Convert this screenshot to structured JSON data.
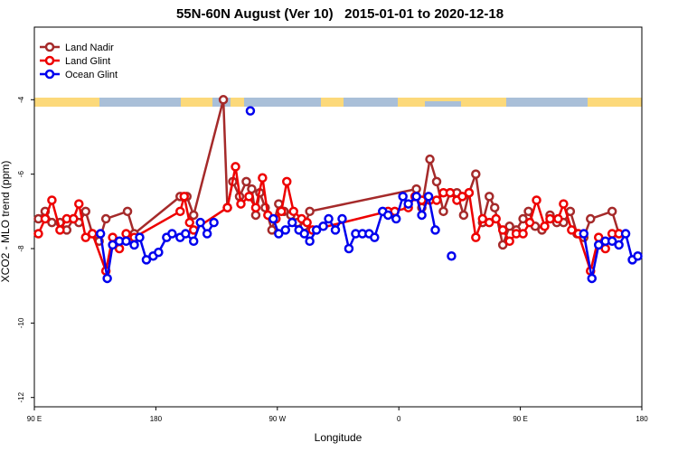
{
  "chart_data": {
    "type": "line",
    "title": "55N-60N August (Ver 10)   2015-01-01 to 2020-12-18",
    "x_label": "Longitude",
    "y_label": "XCO2 - MLO trend (ppm)",
    "xlim": [
      90,
      540
    ],
    "xticks": [
      {
        "value": 90,
        "label": "90 E"
      },
      180,
      {
        "value": 270,
        "label": "90 W"
      },
      {
        "value": 360,
        "label": "0"
      },
      {
        "value": 450,
        "label": "90 E"
      },
      {
        "value": 540,
        "label": "180"
      }
    ],
    "ylim": [
      -12.25,
      -2.05
    ],
    "yticks": [
      -4,
      -6,
      -8,
      -10,
      -12
    ],
    "grid": false,
    "legend": "upper left",
    "series": [
      {
        "name": "Land Nadir",
        "color": "#a52a2a",
        "x": [
          93,
          98,
          103,
          109,
          114,
          119,
          123,
          128,
          133,
          138,
          143,
          159,
          164,
          198,
          203,
          208,
          230,
          233,
          237,
          242,
          247,
          251,
          254,
          257,
          261,
          266,
          271,
          275,
          280,
          285,
          290,
          294,
          373,
          377,
          383,
          388,
          393,
          398,
          403,
          408,
          412,
          417,
          422,
          427,
          431,
          437,
          442,
          447,
          452,
          456,
          461,
          466,
          472,
          477,
          482,
          487,
          492,
          497,
          502,
          518,
          523
        ],
        "values": [
          -7.2,
          -7.0,
          -7.3,
          -7.3,
          -7.5,
          -7.2,
          -7.3,
          -7.0,
          -7.6,
          -7.8,
          -7.2,
          -7.0,
          -7.6,
          -6.6,
          -6.6,
          -7.1,
          -4.0,
          -6.9,
          -6.2,
          -6.6,
          -6.2,
          -6.4,
          -7.1,
          -6.5,
          -6.9,
          -7.5,
          -6.8,
          -7.0,
          -7.1,
          -7.3,
          -7.4,
          -7.0,
          -6.4,
          -6.9,
          -5.6,
          -6.2,
          -7.0,
          -6.5,
          -6.5,
          -7.1,
          -6.5,
          -6.0,
          -7.3,
          -6.6,
          -6.9,
          -7.9,
          -7.4,
          -7.5,
          -7.2,
          -7.0,
          -7.4,
          -7.5,
          -7.1,
          -7.3,
          -7.3,
          -7.0,
          -7.6,
          -7.7,
          -7.2,
          -7.0,
          -7.6
        ]
      },
      {
        "name": "Land Glint",
        "color": "#ee0000",
        "x": [
          93,
          98,
          103,
          109,
          114,
          119,
          123,
          128,
          133,
          143,
          148,
          153,
          158,
          164,
          198,
          201,
          205,
          208,
          233,
          239,
          243,
          249,
          254,
          259,
          263,
          269,
          273,
          277,
          282,
          288,
          292,
          296,
          352,
          357,
          367,
          372,
          377,
          383,
          388,
          393,
          398,
          403,
          407,
          412,
          417,
          422,
          427,
          432,
          437,
          442,
          447,
          452,
          457,
          462,
          468,
          472,
          478,
          482,
          488,
          493,
          502,
          508,
          513,
          518,
          523
        ],
        "values": [
          -7.6,
          -7.2,
          -6.7,
          -7.5,
          -7.2,
          -7.2,
          -6.8,
          -7.7,
          -7.6,
          -8.6,
          -7.7,
          -8.0,
          -7.6,
          -7.7,
          -7.0,
          -6.6,
          -7.3,
          -7.5,
          -6.9,
          -5.8,
          -6.8,
          -6.6,
          -6.9,
          -6.1,
          -7.1,
          -7.2,
          -7.0,
          -6.2,
          -7.0,
          -7.2,
          -7.3,
          -7.5,
          -7.0,
          -7.0,
          -6.9,
          -6.6,
          -6.7,
          -6.7,
          -6.7,
          -6.5,
          -6.5,
          -6.7,
          -6.6,
          -6.5,
          -7.7,
          -7.2,
          -7.3,
          -7.2,
          -7.5,
          -7.8,
          -7.6,
          -7.6,
          -7.3,
          -6.7,
          -7.4,
          -7.2,
          -7.2,
          -6.8,
          -7.5,
          -7.6,
          -8.6,
          -7.7,
          -8.0,
          -7.6,
          -7.6
        ]
      },
      {
        "name": "Ocean Glint",
        "color": "#0000ee",
        "x": [
          139,
          144,
          148,
          153,
          158,
          164,
          168,
          173,
          178,
          182,
          188,
          192,
          198,
          202,
          208,
          213,
          218,
          223,
          null,
          250,
          null,
          267,
          271,
          276,
          281,
          286,
          290,
          294,
          299,
          304,
          308,
          313,
          318,
          323,
          328,
          333,
          338,
          342,
          348,
          352,
          358,
          363,
          367,
          373,
          377,
          382,
          387,
          null,
          399,
          null,
          497,
          503,
          508,
          513,
          518,
          523,
          528,
          533,
          537
        ],
        "values": [
          -7.6,
          -8.8,
          -7.9,
          -7.8,
          -7.8,
          -7.9,
          -7.7,
          -8.3,
          -8.2,
          -8.1,
          -7.7,
          -7.6,
          -7.7,
          -7.6,
          -7.8,
          -7.3,
          -7.6,
          -7.3,
          null,
          -4.3,
          null,
          -7.2,
          -7.6,
          -7.5,
          -7.3,
          -7.5,
          -7.6,
          -7.8,
          -7.5,
          -7.4,
          -7.2,
          -7.5,
          -7.2,
          -8.0,
          -7.6,
          -7.6,
          -7.6,
          -7.7,
          -7.0,
          -7.1,
          -7.2,
          -6.6,
          -6.8,
          -6.6,
          -7.1,
          -6.6,
          -7.5,
          null,
          -8.2,
          null,
          -7.6,
          -8.8,
          -7.9,
          -7.8,
          -7.8,
          -7.9,
          -7.6,
          -8.3,
          -8.2
        ]
      }
    ]
  }
}
